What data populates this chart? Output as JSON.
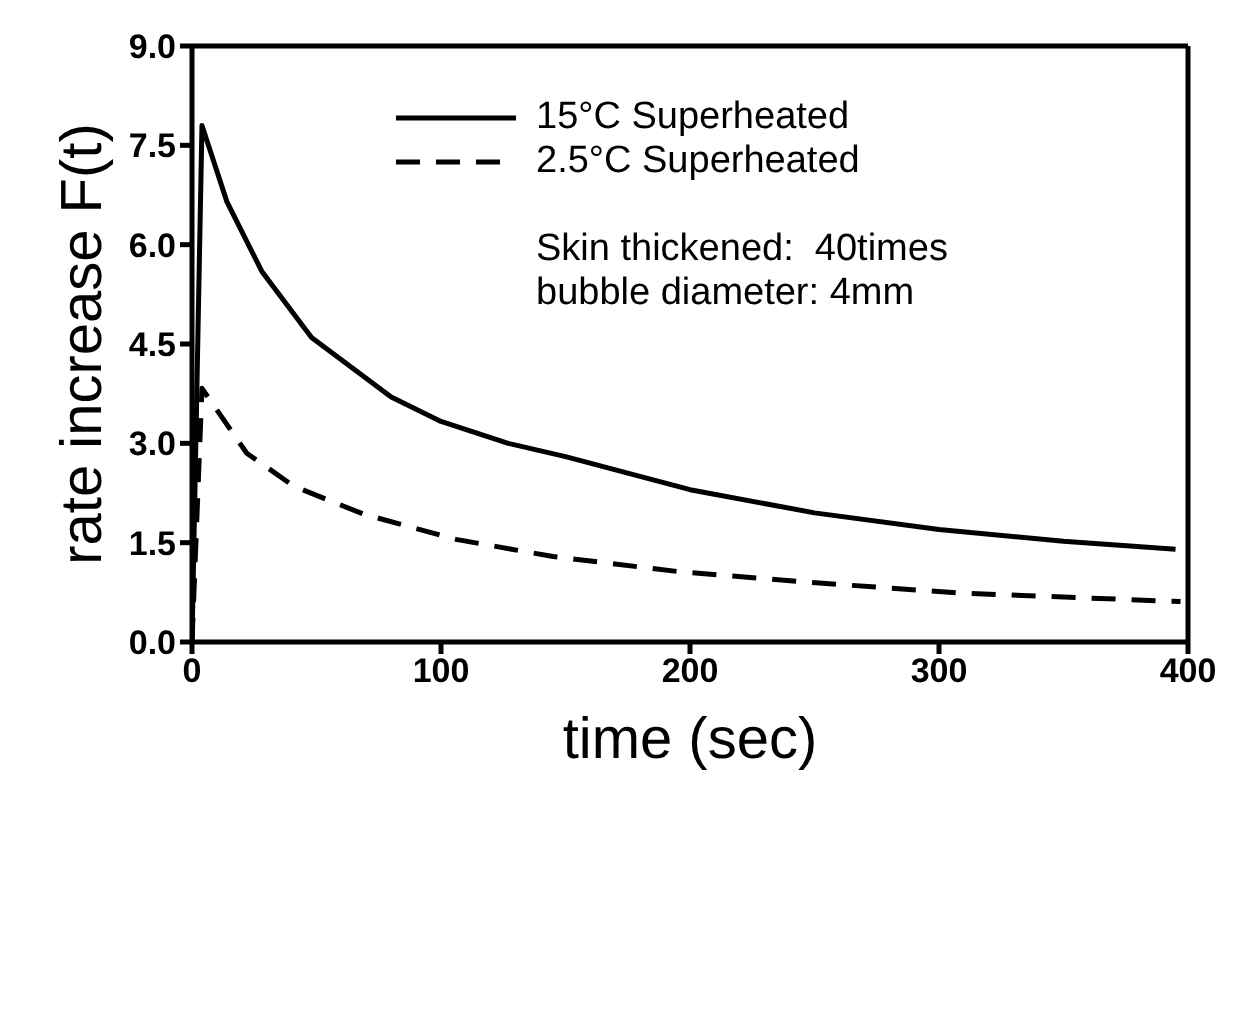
{
  "chart_data": {
    "type": "line",
    "xlabel": "time  (sec)",
    "ylabel": "rate increase  F(t)",
    "xlim": [
      0,
      400
    ],
    "xticks": [
      0,
      100,
      200,
      300,
      400
    ],
    "ylim": [
      0,
      9
    ],
    "yticks": [
      {
        "value": 0,
        "label": "0.0"
      },
      {
        "value": 1.5,
        "label": "1.5"
      },
      {
        "value": 3,
        "label": "3.0"
      },
      {
        "value": 4.5,
        "label": "4.5"
      },
      {
        "value": 6,
        "label": "6.0"
      },
      {
        "value": 7.5,
        "label": "7.5"
      },
      {
        "value": 9,
        "label": "9.0"
      }
    ],
    "legend": "top",
    "marker": "none",
    "annotations": [
      "Skin thickened:  40times",
      "bubble diameter: 4mm"
    ],
    "series": [
      {
        "name": "15°C Superheated",
        "color": "#000000",
        "line_style": "solid",
        "x": [
          0,
          4,
          14,
          28,
          48,
          80,
          100,
          127,
          150,
          200,
          250,
          300,
          350,
          395
        ],
        "values": [
          0,
          7.8,
          6.65,
          5.6,
          4.6,
          3.7,
          3.33,
          3.0,
          2.8,
          2.3,
          1.95,
          1.7,
          1.52,
          1.4
        ]
      },
      {
        "name": "2.5°C Superheated",
        "color": "#000000",
        "line_style": "dashed",
        "x": [
          0,
          4,
          22,
          41,
          69,
          106,
          145,
          196,
          252,
          308,
          397
        ],
        "values": [
          0,
          3.83,
          2.85,
          2.35,
          1.93,
          1.55,
          1.29,
          1.06,
          0.89,
          0.74,
          0.61
        ]
      }
    ]
  }
}
